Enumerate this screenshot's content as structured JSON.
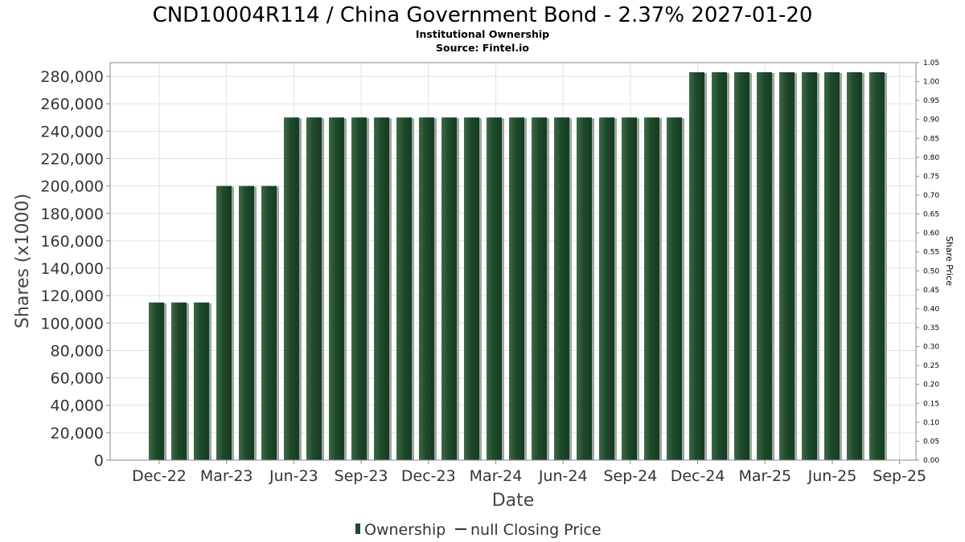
{
  "chart_data": {
    "type": "bar",
    "title": "CND10004R114 / China Government Bond - 2.37% 2027-01-20",
    "subtitle": "Institutional Ownership",
    "source": "Source: Fintel.io",
    "xlabel": "Date",
    "ylabel": "Shares (x1000)",
    "y2label": "Share Price",
    "ylim": [
      0,
      290000
    ],
    "y2lim": [
      0,
      1.05
    ],
    "grid": true,
    "legend_placement": "bottom-center",
    "yticks": [
      "0",
      "20,000",
      "40,000",
      "60,000",
      "80,000",
      "100,000",
      "120,000",
      "140,000",
      "160,000",
      "180,000",
      "200,000",
      "220,000",
      "240,000",
      "260,000",
      "280,000"
    ],
    "y2ticks": [
      "0.00",
      "0.05",
      "0.10",
      "0.15",
      "0.20",
      "0.25",
      "0.30",
      "0.35",
      "0.40",
      "0.45",
      "0.50",
      "0.55",
      "0.60",
      "0.65",
      "0.70",
      "0.75",
      "0.80",
      "0.85",
      "0.90",
      "0.95",
      "1.00",
      "1.05"
    ],
    "xticks": [
      "Dec-22",
      "Mar-23",
      "Jun-23",
      "Sep-23",
      "Dec-23",
      "Mar-24",
      "Jun-24",
      "Sep-24",
      "Dec-24",
      "Mar-25",
      "Jun-25",
      "Sep-25"
    ],
    "series": [
      {
        "name": "Ownership",
        "color": "#1e4a2c",
        "values": [
          115000,
          115000,
          115000,
          200000,
          200000,
          200000,
          250000,
          250000,
          250000,
          250000,
          250000,
          250000,
          250000,
          250000,
          250000,
          250000,
          250000,
          250000,
          250000,
          250000,
          250000,
          250000,
          250000,
          250000,
          283000,
          283000,
          283000,
          283000,
          283000,
          283000,
          283000,
          283000,
          283000
        ]
      }
    ],
    "legend": [
      {
        "label": "Ownership",
        "marker": "bar",
        "color": "#1e4a2c"
      },
      {
        "label": "null Closing Price",
        "marker": "line",
        "color": "#333333"
      }
    ]
  }
}
